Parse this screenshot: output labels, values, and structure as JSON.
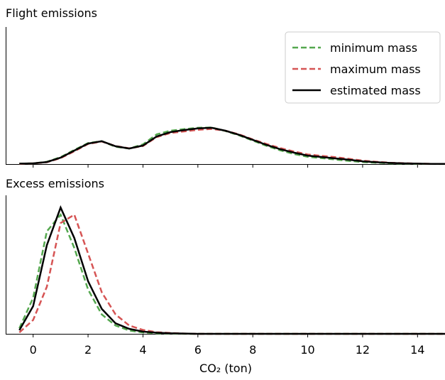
{
  "chart_data": [
    {
      "type": "line",
      "title": "Flight emissions",
      "x": [
        -0.5,
        0,
        0.5,
        1,
        1.5,
        2,
        2.5,
        3,
        3.5,
        4,
        4.5,
        5,
        5.5,
        6,
        6.5,
        7,
        7.5,
        8,
        8.5,
        9,
        9.5,
        10,
        10.5,
        11,
        11.5,
        12,
        12.5,
        13,
        13.5,
        14,
        14.5,
        15
      ],
      "series": [
        {
          "name": "minimum mass",
          "color": "#55a84f",
          "linestyle": "dashed",
          "values": [
            0.002,
            0.003,
            0.01,
            0.03,
            0.062,
            0.092,
            0.1,
            0.076,
            0.068,
            0.086,
            0.13,
            0.146,
            0.153,
            0.159,
            0.16,
            0.145,
            0.126,
            0.103,
            0.08,
            0.06,
            0.044,
            0.032,
            0.026,
            0.02,
            0.014,
            0.009,
            0.006,
            0.003,
            0.002,
            0.001,
            0.0005,
            0.0002
          ]
        },
        {
          "name": "maximum mass",
          "color": "#d65454",
          "linestyle": "dashed",
          "values": [
            0.001,
            0.003,
            0.008,
            0.026,
            0.056,
            0.088,
            0.099,
            0.079,
            0.069,
            0.079,
            0.118,
            0.136,
            0.143,
            0.15,
            0.154,
            0.146,
            0.13,
            0.108,
            0.088,
            0.07,
            0.055,
            0.042,
            0.036,
            0.03,
            0.023,
            0.015,
            0.01,
            0.006,
            0.004,
            0.002,
            0.001,
            0.0005
          ]
        },
        {
          "name": "estimated mass",
          "color": "#000000",
          "linestyle": "solid",
          "values": [
            0.002,
            0.003,
            0.009,
            0.028,
            0.059,
            0.09,
            0.1,
            0.078,
            0.068,
            0.081,
            0.121,
            0.14,
            0.149,
            0.156,
            0.159,
            0.146,
            0.128,
            0.106,
            0.084,
            0.065,
            0.05,
            0.037,
            0.031,
            0.025,
            0.019,
            0.012,
            0.008,
            0.005,
            0.003,
            0.002,
            0.001,
            0.0005
          ]
        }
      ],
      "xlim": [
        -1,
        15
      ],
      "ylim": [
        0,
        0.6
      ],
      "legend": "upper right"
    },
    {
      "type": "line",
      "title": "Excess emissions",
      "x_label": "CO₂ (ton)",
      "x": [
        -0.5,
        0,
        0.5,
        1,
        1.5,
        2,
        2.5,
        3,
        3.5,
        4,
        4.5,
        5,
        5.5,
        6,
        15
      ],
      "series": [
        {
          "color": "#55a84f",
          "linestyle": "dashed",
          "values": [
            0.02,
            0.13,
            0.37,
            0.43,
            0.31,
            0.16,
            0.07,
            0.03,
            0.012,
            0.005,
            0.002,
            0.001,
            0,
            0,
            0
          ]
        },
        {
          "color": "#d65454",
          "linestyle": "dashed",
          "values": [
            0.005,
            0.05,
            0.17,
            0.4,
            0.43,
            0.29,
            0.15,
            0.07,
            0.03,
            0.014,
            0.006,
            0.003,
            0.001,
            0,
            0
          ]
        },
        {
          "color": "#000000",
          "linestyle": "solid",
          "values": [
            0.013,
            0.1,
            0.32,
            0.456,
            0.346,
            0.19,
            0.09,
            0.038,
            0.018,
            0.008,
            0.004,
            0.002,
            0.001,
            0,
            0
          ]
        }
      ],
      "xlim": [
        -1,
        15
      ],
      "ylim": [
        0,
        0.5
      ],
      "xticks": [
        0,
        2,
        4,
        6,
        8,
        10,
        12,
        14
      ]
    }
  ]
}
